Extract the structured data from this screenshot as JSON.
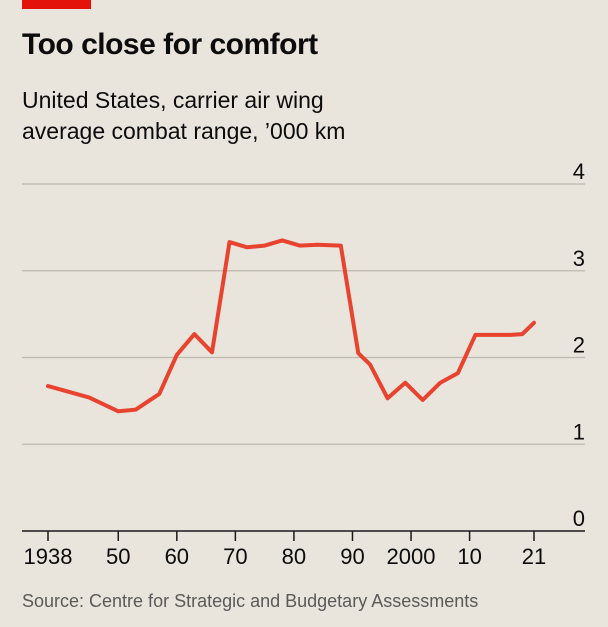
{
  "header": {
    "title": "Too close for comfort",
    "subtitle_line1": "United States, carrier air wing",
    "subtitle_line2": "average combat range, ’000 km"
  },
  "footer": {
    "source": "Source: Centre for Strategic and Budgetary Assessments"
  },
  "colors": {
    "background": "#e9e4dc",
    "line": "#e8432f",
    "accent_tag": "#e3120b",
    "grid": "#bdb8b0"
  },
  "chart_data": {
    "type": "line",
    "title": "Too close for comfort",
    "subtitle": "United States, carrier air wing average combat range, ’000 km",
    "xlabel": "",
    "ylabel": "",
    "xlim": [
      1936,
      2027
    ],
    "ylim": [
      0,
      4
    ],
    "grid": true,
    "y_ticks": [
      "0",
      "1",
      "2",
      "3",
      "4"
    ],
    "x_ticks": [
      {
        "value": 1938,
        "label": "1938"
      },
      {
        "value": 1950,
        "label": "50"
      },
      {
        "value": 1960,
        "label": "60"
      },
      {
        "value": 1970,
        "label": "70"
      },
      {
        "value": 1980,
        "label": "80"
      },
      {
        "value": 1990,
        "label": "90"
      },
      {
        "value": 2000,
        "label": "2000"
      },
      {
        "value": 2010,
        "label": "10"
      },
      {
        "value": 2021,
        "label": "21"
      }
    ],
    "series": [
      {
        "x": [
          1938,
          1945,
          1950,
          1953,
          1957,
          1960,
          1963,
          1966,
          1969,
          1972,
          1975,
          1978,
          1981,
          1984,
          1988,
          1991,
          1993,
          1996,
          1999,
          2002,
          2005,
          2008,
          2011,
          2014,
          2017,
          2019,
          2021
        ],
        "values": [
          1.67,
          1.54,
          1.38,
          1.4,
          1.58,
          2.03,
          2.27,
          2.06,
          3.33,
          3.27,
          3.29,
          3.35,
          3.29,
          3.3,
          3.29,
          2.05,
          1.92,
          1.53,
          1.71,
          1.51,
          1.71,
          1.82,
          2.26,
          2.26,
          2.26,
          2.27,
          2.4
        ]
      }
    ]
  }
}
